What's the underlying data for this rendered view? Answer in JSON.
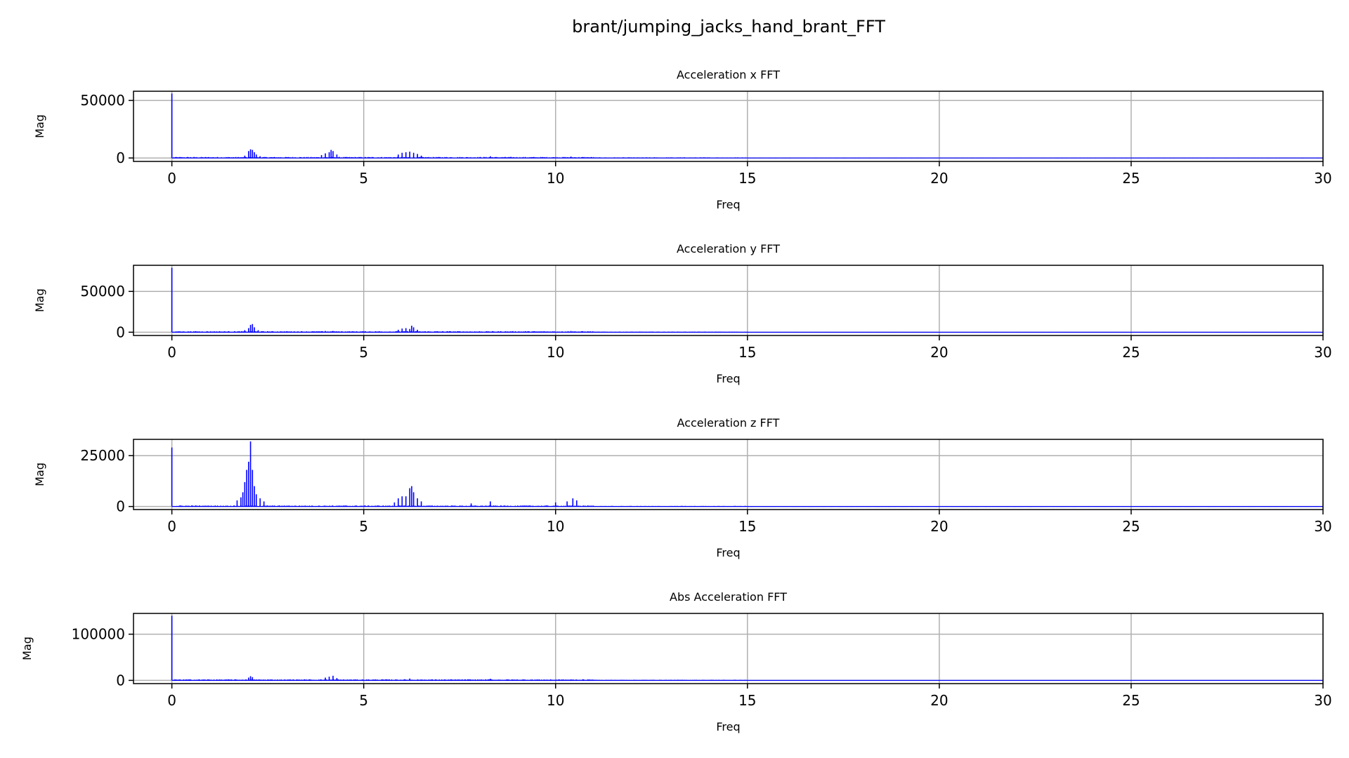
{
  "figure_title": "brant/jumping_jacks_hand_brant_FFT",
  "chart_data": [
    {
      "type": "bar",
      "title": "Acceleration x FFT",
      "xlabel": "Freq",
      "ylabel": "Mag",
      "xlim": [
        -1,
        30
      ],
      "ylim": [
        -3000,
        58000
      ],
      "xticks": [
        0,
        5,
        10,
        15,
        20,
        25,
        30
      ],
      "yticks": [
        0,
        50000
      ],
      "color": "#0000ff",
      "grid": true,
      "peaks": [
        {
          "x": 0.0,
          "y": 56000
        },
        {
          "x": 1.9,
          "y": 2000
        },
        {
          "x": 2.0,
          "y": 6000
        },
        {
          "x": 2.05,
          "y": 7500
        },
        {
          "x": 2.1,
          "y": 7000
        },
        {
          "x": 2.15,
          "y": 5000
        },
        {
          "x": 2.2,
          "y": 3000
        },
        {
          "x": 2.3,
          "y": 1500
        },
        {
          "x": 3.9,
          "y": 2500
        },
        {
          "x": 4.0,
          "y": 4000
        },
        {
          "x": 4.1,
          "y": 5000
        },
        {
          "x": 4.15,
          "y": 7000
        },
        {
          "x": 4.2,
          "y": 6000
        },
        {
          "x": 4.3,
          "y": 3000
        },
        {
          "x": 5.9,
          "y": 3000
        },
        {
          "x": 6.0,
          "y": 4500
        },
        {
          "x": 6.1,
          "y": 5000
        },
        {
          "x": 6.2,
          "y": 5500
        },
        {
          "x": 6.3,
          "y": 4500
        },
        {
          "x": 6.4,
          "y": 3500
        },
        {
          "x": 6.5,
          "y": 2000
        },
        {
          "x": 8.3,
          "y": 1500
        },
        {
          "x": 10.4,
          "y": 1200
        }
      ]
    },
    {
      "type": "bar",
      "title": "Acceleration y FFT",
      "xlabel": "Freq",
      "ylabel": "Mag",
      "xlim": [
        -1,
        30
      ],
      "ylim": [
        -4000,
        82000
      ],
      "xticks": [
        0,
        5,
        10,
        15,
        20,
        25,
        30
      ],
      "yticks": [
        0,
        50000
      ],
      "color": "#0000ff",
      "grid": true,
      "peaks": [
        {
          "x": 0.0,
          "y": 79000
        },
        {
          "x": 1.9,
          "y": 2500
        },
        {
          "x": 2.0,
          "y": 5000
        },
        {
          "x": 2.05,
          "y": 9000
        },
        {
          "x": 2.1,
          "y": 10000
        },
        {
          "x": 2.15,
          "y": 6000
        },
        {
          "x": 2.25,
          "y": 2500
        },
        {
          "x": 4.0,
          "y": 1500
        },
        {
          "x": 4.2,
          "y": 1500
        },
        {
          "x": 5.9,
          "y": 3000
        },
        {
          "x": 6.0,
          "y": 4500
        },
        {
          "x": 6.1,
          "y": 5000
        },
        {
          "x": 6.2,
          "y": 4000
        },
        {
          "x": 6.25,
          "y": 8000
        },
        {
          "x": 6.3,
          "y": 6000
        },
        {
          "x": 6.4,
          "y": 3000
        },
        {
          "x": 10.4,
          "y": 1500
        }
      ]
    },
    {
      "type": "bar",
      "title": "Acceleration z FFT",
      "xlabel": "Freq",
      "ylabel": "Mag",
      "xlim": [
        -1,
        30
      ],
      "ylim": [
        -1500,
        33000
      ],
      "xticks": [
        0,
        5,
        10,
        15,
        20,
        25,
        30
      ],
      "yticks": [
        0,
        25000
      ],
      "color": "#0000ff",
      "grid": true,
      "peaks": [
        {
          "x": 0.0,
          "y": 29000
        },
        {
          "x": 1.7,
          "y": 3000
        },
        {
          "x": 1.8,
          "y": 4500
        },
        {
          "x": 1.85,
          "y": 7000
        },
        {
          "x": 1.9,
          "y": 12000
        },
        {
          "x": 1.95,
          "y": 18000
        },
        {
          "x": 2.0,
          "y": 22000
        },
        {
          "x": 2.05,
          "y": 32000
        },
        {
          "x": 2.1,
          "y": 18000
        },
        {
          "x": 2.15,
          "y": 10000
        },
        {
          "x": 2.2,
          "y": 6000
        },
        {
          "x": 2.3,
          "y": 4000
        },
        {
          "x": 2.4,
          "y": 2500
        },
        {
          "x": 5.8,
          "y": 2000
        },
        {
          "x": 5.9,
          "y": 4000
        },
        {
          "x": 6.0,
          "y": 5000
        },
        {
          "x": 6.1,
          "y": 5000
        },
        {
          "x": 6.2,
          "y": 9000
        },
        {
          "x": 6.25,
          "y": 10000
        },
        {
          "x": 6.3,
          "y": 7000
        },
        {
          "x": 6.4,
          "y": 4000
        },
        {
          "x": 6.5,
          "y": 2500
        },
        {
          "x": 7.8,
          "y": 1500
        },
        {
          "x": 8.3,
          "y": 2500
        },
        {
          "x": 10.0,
          "y": 2000
        },
        {
          "x": 10.3,
          "y": 2500
        },
        {
          "x": 10.45,
          "y": 4000
        },
        {
          "x": 10.55,
          "y": 3000
        }
      ]
    },
    {
      "type": "bar",
      "title": "Abs Acceleration FFT",
      "xlabel": "Freq",
      "ylabel": "Mag",
      "xlim": [
        -1,
        30
      ],
      "ylim": [
        -7000,
        145000
      ],
      "xticks": [
        0,
        5,
        10,
        15,
        20,
        25,
        30
      ],
      "yticks": [
        0,
        100000
      ],
      "color": "#0000ff",
      "grid": true,
      "peaks": [
        {
          "x": 0.0,
          "y": 140000
        },
        {
          "x": 2.0,
          "y": 6000
        },
        {
          "x": 2.05,
          "y": 9000
        },
        {
          "x": 2.1,
          "y": 7000
        },
        {
          "x": 4.0,
          "y": 6000
        },
        {
          "x": 4.1,
          "y": 8000
        },
        {
          "x": 4.2,
          "y": 10000
        },
        {
          "x": 4.3,
          "y": 5000
        },
        {
          "x": 6.2,
          "y": 4000
        },
        {
          "x": 8.3,
          "y": 3500
        }
      ]
    }
  ]
}
